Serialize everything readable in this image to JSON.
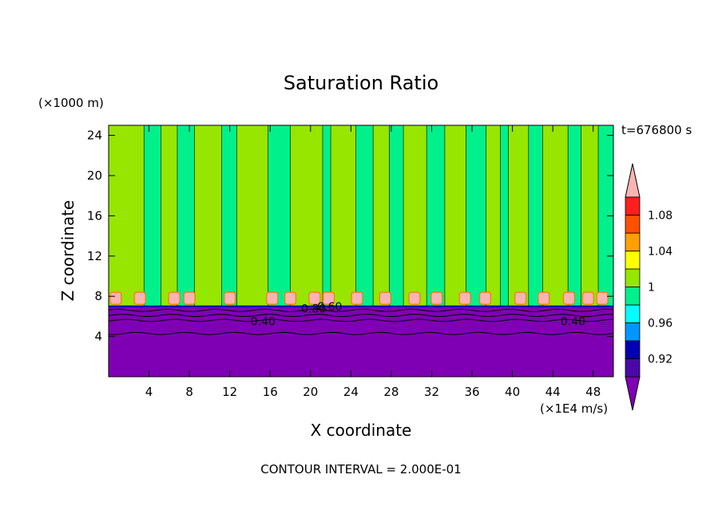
{
  "chart_data": {
    "type": "contour",
    "title": "Saturation Ratio",
    "xlabel": "X coordinate",
    "ylabel": "Z coordinate",
    "x_unit": "(×1E4 m/s)",
    "y_unit": "(×1000 m)",
    "time_label": "t=676800 s",
    "footer": "CONTOUR INTERVAL = 2.000E-01",
    "xlim": [
      0,
      50
    ],
    "ylim": [
      0,
      25
    ],
    "x_ticks": [
      "4",
      "8",
      "12",
      "16",
      "20",
      "24",
      "28",
      "32",
      "36",
      "40",
      "44",
      "48"
    ],
    "y_ticks": [
      "4",
      "8",
      "12",
      "16",
      "20",
      "24"
    ],
    "contour_labels": [
      "0.40",
      "0.80",
      "0.60",
      "0.40"
    ],
    "colorbar": {
      "labels": [
        "1.08",
        "1.04",
        "1",
        "0.96",
        "0.92"
      ],
      "levels": [
        0.9,
        0.92,
        0.94,
        0.96,
        0.98,
        1.0,
        1.02,
        1.04,
        1.06,
        1.08,
        1.1
      ],
      "colors": [
        "#7f00b4",
        "#4b08a8",
        "#0000b4",
        "#0096ff",
        "#00ffff",
        "#00f08c",
        "#96e600",
        "#ffff00",
        "#ffa000",
        "#ff5000",
        "#ff1e1e",
        "#fab4b4"
      ]
    },
    "fields": {
      "dry_layer_color": "#7f00b4",
      "saturated_color": "#00f08c",
      "supersat_color": "#96e600",
      "boundary_z": 7
    }
  }
}
